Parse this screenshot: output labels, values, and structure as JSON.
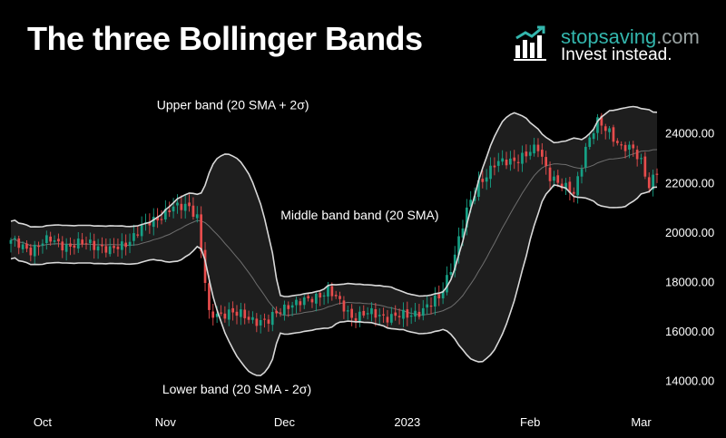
{
  "header": {
    "title": "The three Bollinger Bands",
    "brand_name": "stopsaving",
    "brand_domain": ".com",
    "brand_tagline": "Invest instead."
  },
  "colors": {
    "background": "#000000",
    "band_fill": "#1e1e1e",
    "band_line": "#d9d9d9",
    "middle_line": "#6e6e6e",
    "candle_up": "#16a085",
    "candle_down": "#e74c4c",
    "brand_accent": "#33b6ad"
  },
  "chart_data": {
    "type": "candlestick",
    "title": "The three Bollinger Bands",
    "ylim": [
      13000,
      25600
    ],
    "y_ticks": [
      14000,
      16000,
      18000,
      20000,
      22000,
      24000
    ],
    "y_tick_labels": [
      "14000.00",
      "16000.00",
      "18000.00",
      "20000.00",
      "22000.00",
      "24000.00"
    ],
    "x_tick_labels": [
      {
        "label": "Oct",
        "index": 8
      },
      {
        "label": "Nov",
        "index": 39
      },
      {
        "label": "Dec",
        "index": 69
      },
      {
        "label": "2023",
        "index": 100
      },
      {
        "label": "Feb",
        "index": 131
      },
      {
        "label": "Mar",
        "index": 159
      }
    ],
    "grid": false,
    "annotations": [
      {
        "text": "Upper band (20 SMA + 2σ)",
        "index": 56,
        "value": 24950
      },
      {
        "text": "Middle band band (20 SMA)",
        "index": 88,
        "value": 20500
      },
      {
        "text": "Lower band (20 SMA - 2σ)",
        "index": 57,
        "value": 13470
      }
    ],
    "close_keypoints": [
      [
        0,
        19600
      ],
      [
        5,
        19300
      ],
      [
        10,
        19700
      ],
      [
        15,
        19400
      ],
      [
        20,
        19600
      ],
      [
        25,
        19200
      ],
      [
        30,
        19700
      ],
      [
        35,
        20400
      ],
      [
        40,
        20900
      ],
      [
        45,
        21100
      ],
      [
        47,
        20600
      ],
      [
        50,
        16600
      ],
      [
        55,
        16800
      ],
      [
        60,
        16500
      ],
      [
        65,
        16400
      ],
      [
        70,
        17100
      ],
      [
        75,
        17200
      ],
      [
        80,
        17700
      ],
      [
        83,
        17100
      ],
      [
        86,
        16600
      ],
      [
        90,
        16700
      ],
      [
        95,
        16600
      ],
      [
        100,
        16600
      ],
      [
        104,
        16900
      ],
      [
        108,
        17300
      ],
      [
        111,
        18600
      ],
      [
        115,
        20800
      ],
      [
        118,
        22000
      ],
      [
        122,
        22700
      ],
      [
        126,
        22900
      ],
      [
        130,
        23100
      ],
      [
        133,
        23400
      ],
      [
        136,
        22300
      ],
      [
        139,
        21800
      ],
      [
        142,
        21600
      ],
      [
        145,
        23400
      ],
      [
        148,
        24400
      ],
      [
        151,
        24100
      ],
      [
        154,
        23400
      ],
      [
        157,
        23300
      ],
      [
        159,
        22900
      ],
      [
        161,
        21900
      ],
      [
        163,
        22400
      ]
    ],
    "series": [
      {
        "name": "Upper band (20 SMA + 2σ)",
        "kind": "upper_band"
      },
      {
        "name": "Middle band band (20 SMA)",
        "kind": "middle_band"
      },
      {
        "name": "Lower band (20 SMA - 2σ)",
        "kind": "lower_band"
      }
    ]
  }
}
